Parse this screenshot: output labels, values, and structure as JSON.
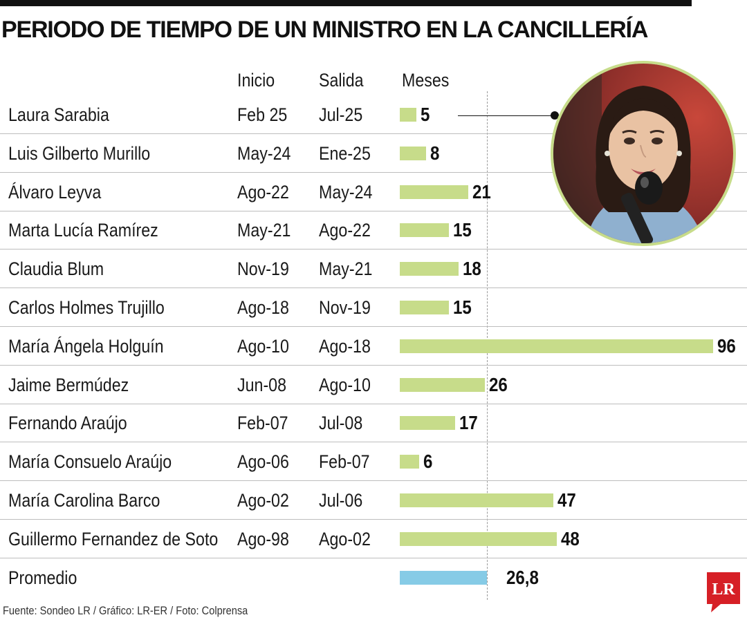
{
  "title": "PERIODO DE TIEMPO DE UN MINISTRO EN LA CANCILLERÍA",
  "headers": {
    "start": "Inicio",
    "end": "Salida",
    "months": "Meses"
  },
  "chart_data": {
    "type": "bar",
    "orientation": "horizontal",
    "title": "PERIODO DE TIEMPO DE UN MINISTRO EN LA CANCILLERÍA",
    "value_label": "Meses",
    "series_color": "#c7dc8a",
    "average_color": "#86cbe6",
    "rows": [
      {
        "name": "Laura Sarabia",
        "start": "Feb 25",
        "end": "Jul-25",
        "months": 5,
        "label": "5"
      },
      {
        "name": "Luis Gilberto Murillo",
        "start": "May-24",
        "end": "Ene-25",
        "months": 8,
        "label": "8"
      },
      {
        "name": "Álvaro Leyva",
        "start": "Ago-22",
        "end": "May-24",
        "months": 21,
        "label": "21"
      },
      {
        "name": "Marta Lucía Ramírez",
        "start": "May-21",
        "end": "Ago-22",
        "months": 15,
        "label": "15"
      },
      {
        "name": "Claudia Blum",
        "start": "Nov-19",
        "end": "May-21",
        "months": 18,
        "label": "18"
      },
      {
        "name": "Carlos Holmes Trujillo",
        "start": "Ago-18",
        "end": "Nov-19",
        "months": 15,
        "label": "15"
      },
      {
        "name": "María Ángela Holguín",
        "start": "Ago-10",
        "end": "Ago-18",
        "months": 96,
        "label": "96"
      },
      {
        "name": "Jaime Bermúdez",
        "start": "Jun-08",
        "end": "Ago-10",
        "months": 26,
        "label": "26"
      },
      {
        "name": "Fernando Araújo",
        "start": "Feb-07",
        "end": "Jul-08",
        "months": 17,
        "label": "17"
      },
      {
        "name": "María Consuelo Araújo",
        "start": "Ago-06",
        "end": "Feb-07",
        "months": 6,
        "label": "6"
      },
      {
        "name": "María Carolina Barco",
        "start": "Ago-02",
        "end": "Jul-06",
        "months": 47,
        "label": "47"
      },
      {
        "name": "Guillermo Fernandez de Soto",
        "start": "Ago-98",
        "end": "Ago-02",
        "months": 48,
        "label": "48"
      }
    ],
    "average": {
      "name": "Promedio",
      "months": 26.8,
      "label": "26,8"
    }
  },
  "source": "Fuente: Sondeo LR / Gráfico: LR-ER / Foto: Colprensa",
  "logo_text": "LR",
  "logo_color": "#d61f26",
  "photo_subject": "portrait-photo"
}
